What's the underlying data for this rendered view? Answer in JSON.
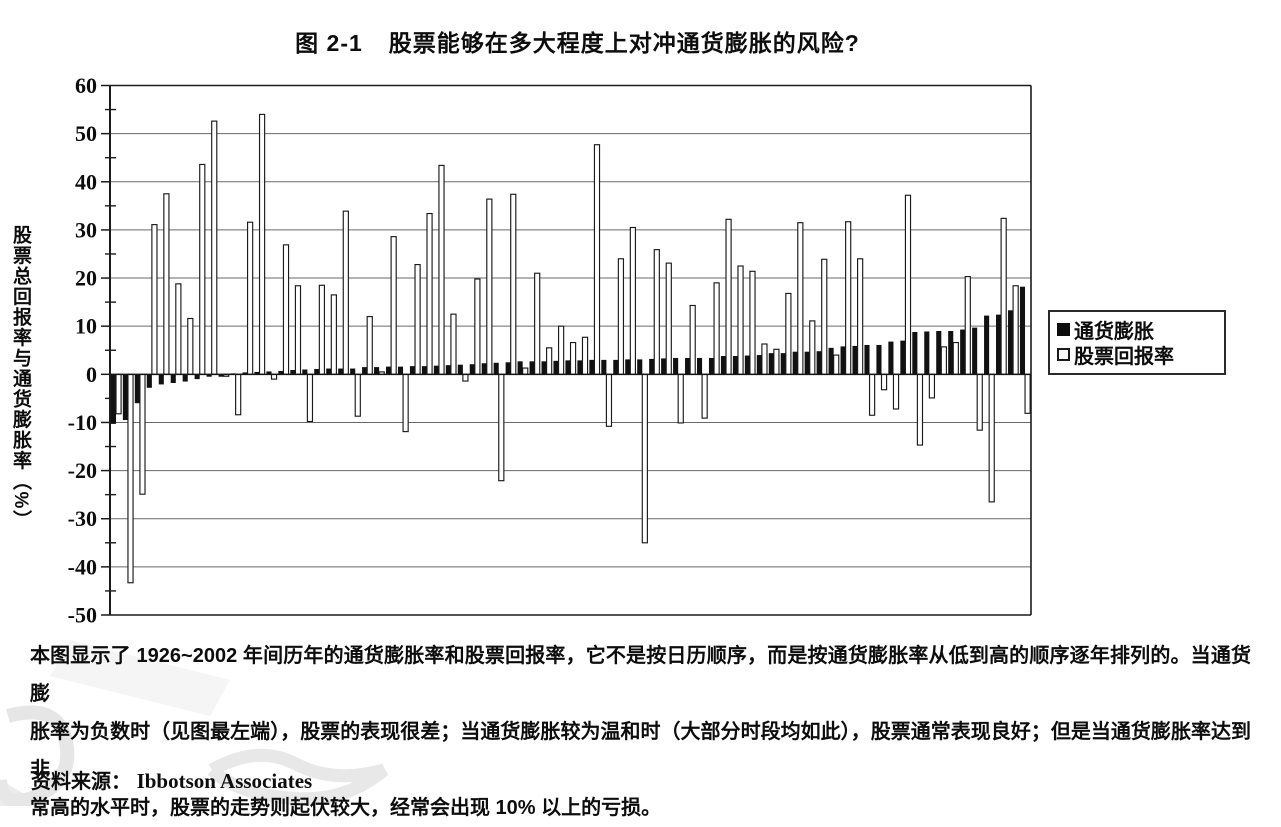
{
  "page": {
    "figure_label": "图 2-1",
    "title": "股票能够在多大程度上对冲通货膨胀的风险?"
  },
  "chart": {
    "y_axis_label": "股票总回报率与通货膨胀率（%）",
    "y_ticks": [
      60,
      50,
      40,
      30,
      20,
      10,
      0,
      -10,
      -20,
      -30,
      -40,
      -50
    ],
    "legend": [
      {
        "label": "通货膨胀",
        "swatch": "filled-black-square"
      },
      {
        "label": "股票回报率",
        "swatch": "white-outline-square"
      }
    ],
    "colors": {
      "inflation_bar_fill": "#111111",
      "stock_bar_fill": "#ffffff",
      "stock_bar_outline": "#1a1a1a",
      "grid_line": "#6a6a6a",
      "frame": "#1c1c1c",
      "background": "#ffffff",
      "text": "#0d0d0d"
    }
  },
  "chart_data": {
    "type": "bar",
    "title": "图 2-1 股票能够在多大程度上对冲通货膨胀的风险?",
    "xlabel": "",
    "ylabel": "股票总回报率与通货膨胀率（%）",
    "ylim": [
      -50,
      60
    ],
    "ytick_step": 10,
    "grid": true,
    "legend_position": "right-middle",
    "x_description": "77个年度观测值（1926~2002年），不按日历顺序，而按通货膨胀率从低到高逐年排列；横轴无刻度标签",
    "series": [
      {
        "name": "通货膨胀",
        "style": "solid-black-bar",
        "values": [
          -10.3,
          -9.5,
          -6.0,
          -2.8,
          -2.1,
          -1.8,
          -1.5,
          -1.0,
          -0.5,
          -0.5,
          0.2,
          0.4,
          0.5,
          0.6,
          0.7,
          0.9,
          1.0,
          1.1,
          1.2,
          1.2,
          1.2,
          1.5,
          1.5,
          1.6,
          1.6,
          1.7,
          1.7,
          1.8,
          1.9,
          2.0,
          2.1,
          2.3,
          2.4,
          2.5,
          2.7,
          2.7,
          2.7,
          2.8,
          2.9,
          2.9,
          3.0,
          3.0,
          3.0,
          3.1,
          3.1,
          3.2,
          3.3,
          3.4,
          3.4,
          3.4,
          3.4,
          3.8,
          3.8,
          3.9,
          4.0,
          4.4,
          4.4,
          4.7,
          4.7,
          4.8,
          5.5,
          5.8,
          5.9,
          6.1,
          6.1,
          6.8,
          7.0,
          8.8,
          8.9,
          9.0,
          9.0,
          9.3,
          9.7,
          12.2,
          12.4,
          13.3,
          18.2
        ]
      },
      {
        "name": "股票回报率",
        "style": "white-bar-black-outline",
        "values": [
          -8.2,
          -43.3,
          -24.9,
          31.1,
          37.5,
          18.8,
          11.6,
          43.6,
          52.6,
          -0.4,
          -8.4,
          31.6,
          54.0,
          -1.0,
          26.9,
          18.4,
          -9.8,
          18.5,
          16.5,
          33.9,
          -8.7,
          12.0,
          0.5,
          28.6,
          -11.9,
          22.8,
          33.4,
          43.4,
          12.5,
          -1.4,
          19.8,
          36.4,
          -22.1,
          37.4,
          1.3,
          21.0,
          5.5,
          10.0,
          6.6,
          7.7,
          47.7,
          -10.8,
          24.0,
          30.5,
          -35.0,
          25.9,
          23.1,
          -10.1,
          14.3,
          -9.1,
          19.0,
          32.2,
          22.5,
          21.4,
          6.3,
          5.2,
          16.8,
          31.5,
          11.1,
          23.9,
          4.0,
          31.7,
          24.0,
          -8.5,
          -3.2,
          -7.2,
          37.2,
          -14.7,
          -4.9,
          5.7,
          6.6,
          20.3,
          -11.6,
          -26.5,
          32.4,
          18.4,
          -8.1
        ]
      }
    ]
  },
  "caption": {
    "lines": [
      "本图显示了 1926~2002 年间历年的通货膨胀率和股票回报率，它不是按日历顺序，而是按通货膨胀率从低到高的顺序逐年排列的。当通货膨",
      "胀率为负数时（见图最左端），股票的表现很差；当通货膨胀较为温和时（大部分时段均如此），股票通常表现良好；但是当通货膨胀率达到非",
      "常高的水平时，股票的走势则起伏较大，经常会出现 10% 以上的亏损。"
    ]
  },
  "source": {
    "label": "资料来源：",
    "value": "Ibbotson Associates"
  }
}
